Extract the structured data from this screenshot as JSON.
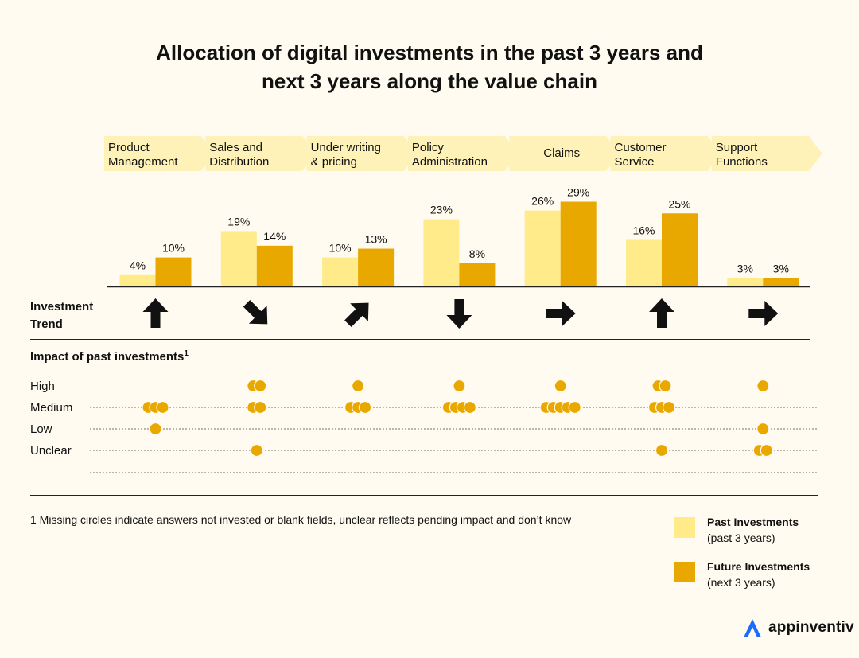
{
  "title": {
    "line1": "Allocation of digital investments in the past 3 years and",
    "line2": "next 3 years along the value chain"
  },
  "colors": {
    "background": "#fffbf0",
    "chevron": "#fff2b8",
    "past": "#ffeb8a",
    "future": "#e9a800",
    "dot": "#e9a800"
  },
  "chart_data": {
    "type": "bar",
    "categories": [
      [
        "Product",
        "Management"
      ],
      [
        "Sales and",
        "Distribution"
      ],
      [
        "Under writing",
        "& pricing"
      ],
      [
        "Policy",
        "Administration"
      ],
      [
        "Claims"
      ],
      [
        "Customer",
        "Service"
      ],
      [
        "Support",
        "Functions"
      ]
    ],
    "series": [
      {
        "name": "Past Investments",
        "values": [
          4,
          19,
          10,
          23,
          26,
          16,
          3
        ]
      },
      {
        "name": "Future Investments",
        "values": [
          10,
          14,
          13,
          8,
          29,
          25,
          3
        ]
      }
    ],
    "value_suffix": "%",
    "ylim": [
      0,
      30
    ],
    "trend_label": [
      "Investment",
      "Trend"
    ],
    "trend": [
      "up",
      "down-right",
      "up-right",
      "down",
      "right",
      "up",
      "right"
    ],
    "impact": {
      "title": "Impact of past investments",
      "title_superscript": "1",
      "levels": [
        "High",
        "Medium",
        "Low",
        "Unclear"
      ],
      "counts": [
        [
          0,
          3,
          1,
          0
        ],
        [
          2,
          2,
          0,
          1
        ],
        [
          1,
          3,
          0,
          0
        ],
        [
          1,
          4,
          0,
          0
        ],
        [
          1,
          5,
          0,
          0
        ],
        [
          2,
          3,
          0,
          1
        ],
        [
          1,
          0,
          1,
          2
        ]
      ]
    }
  },
  "footnote": "1 Missing circles indicate answers not invested or blank fields, unclear reflects pending impact and don’t know",
  "legend": {
    "past": {
      "label": "Past Investments",
      "sub": "(past 3 years)"
    },
    "future": {
      "label": "Future Investments",
      "sub": "(next 3 years)"
    }
  },
  "brand": {
    "name": "appinventiv",
    "icon": "appinventiv-logo-icon"
  }
}
